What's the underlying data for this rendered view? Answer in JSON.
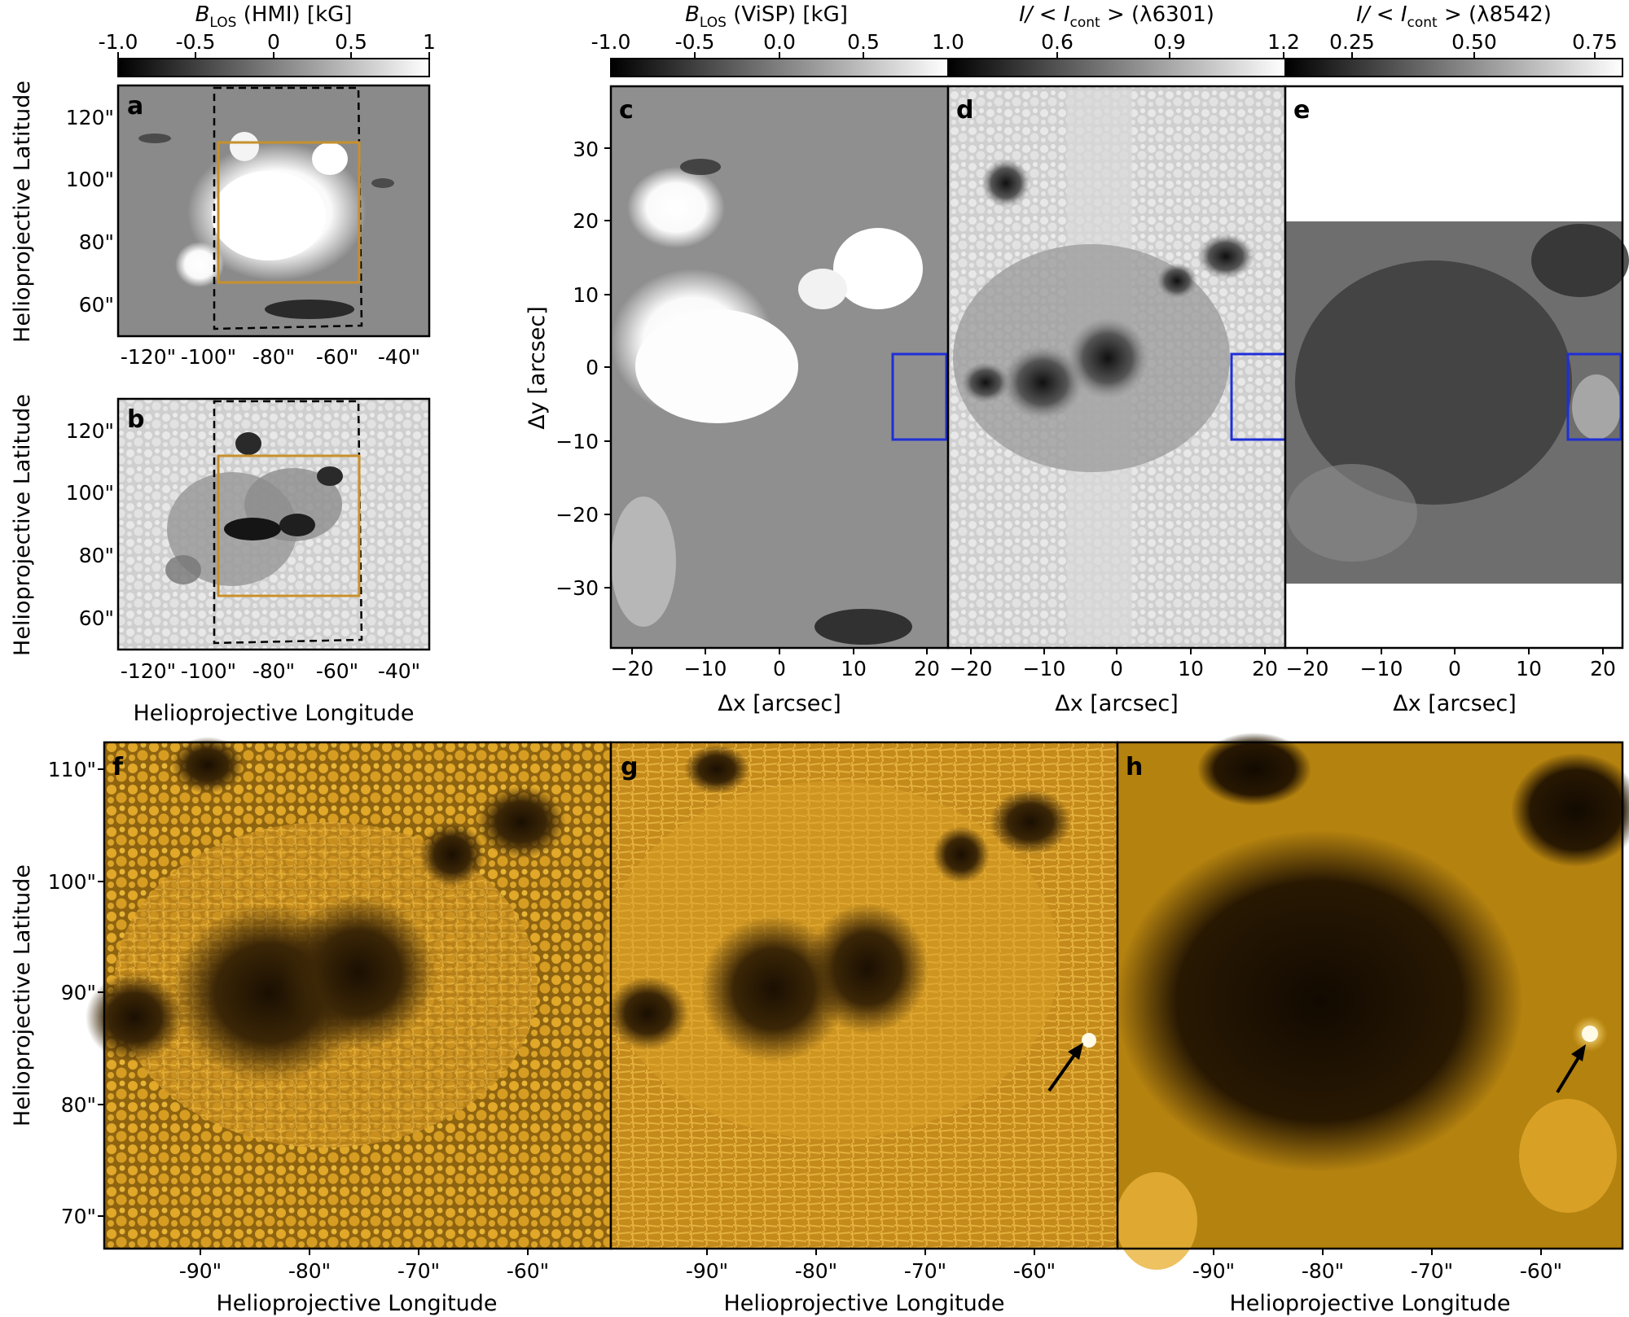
{
  "colorbars": [
    {
      "title_main": "B",
      "title_sub": "LOS",
      "title_rest": " (HMI) [kG]",
      "ticks": [
        "-1.0",
        "-0.5",
        "0",
        "0.5",
        "1"
      ]
    },
    {
      "title_main": "B",
      "title_sub": "LOS",
      "title_rest": " (ViSP) [kG]",
      "ticks": [
        "-1.0",
        "-0.5",
        "0.0",
        "0.5",
        "1.0"
      ]
    },
    {
      "title_main": "I/ < I",
      "title_sub": "cont",
      "title_rest": " > (λ6301)",
      "ticks": [
        "0.6",
        "0.9",
        "1.2"
      ]
    },
    {
      "title_main": "I/ < I",
      "title_sub": "cont",
      "title_rest": " > (λ8542)",
      "ticks": [
        "0.25",
        "0.50",
        "0.75"
      ]
    }
  ],
  "panels": {
    "a": {
      "letter": "a"
    },
    "b": {
      "letter": "b"
    },
    "c": {
      "letter": "c"
    },
    "d": {
      "letter": "d"
    },
    "e": {
      "letter": "e"
    },
    "f": {
      "letter": "f"
    },
    "g": {
      "letter": "g"
    },
    "h": {
      "letter": "h"
    }
  },
  "hmi_axes": {
    "ylabel": "Helioprojective Latitude",
    "xlabel": "Helioprojective Longitude",
    "yticks": [
      "120\"",
      "100\"",
      "80\"",
      "60\""
    ],
    "xticks": [
      "-120\"",
      "-100\"",
      "-80\"",
      "-60\"",
      "-40\""
    ]
  },
  "visp_axes": {
    "ylabel": "Δy [arcsec]",
    "xlabel": "Δx [arcsec]",
    "yticks": [
      "30",
      "20",
      "10",
      "0",
      "−10",
      "−20",
      "−30"
    ],
    "xticks": [
      "−20",
      "−10",
      "0",
      "10",
      "20"
    ]
  },
  "bottom_axes": {
    "ylabel": "Helioprojective Latitude",
    "xlabel": "Helioprojective Longitude",
    "yticks": [
      "110\"",
      "100\"",
      "90\"",
      "80\"",
      "70\""
    ],
    "xticks": [
      "-90\"",
      "-80\"",
      "-70\"",
      "-60\""
    ]
  },
  "colors": {
    "fov_box": "#c8902c",
    "roi_box": "#1f2fd6",
    "gold_light": "#e9b43a",
    "gold_dark": "#2a1a04"
  }
}
